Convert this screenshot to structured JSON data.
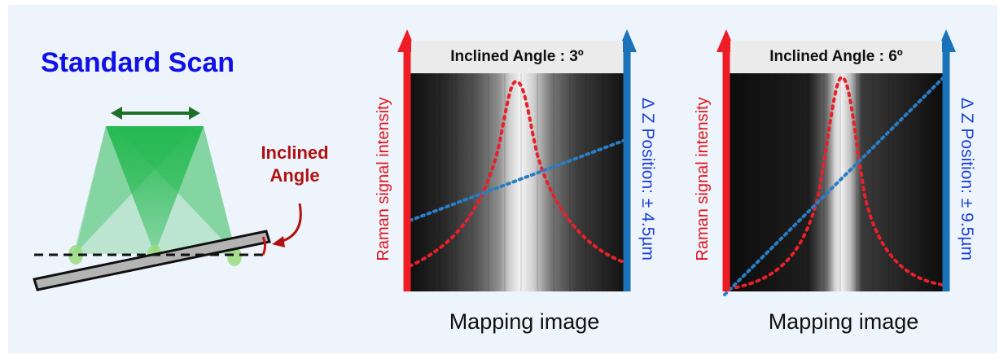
{
  "title": "Standard Scan",
  "inclined_label": "Inclined Angle",
  "colors": {
    "title": "#1010e8",
    "inclined_label": "#b01212",
    "raman_arrow": "#ee1c25",
    "z_arrow": "#1a73b8",
    "peak_curve": "#e8202a",
    "z_line": "#2a7dc4",
    "beam": "#22b84e",
    "panel_bg": "#eef4fb"
  },
  "panels": [
    {
      "title": "Inclined Angle : 3º",
      "left_axis_label": "Raman signal intensity",
      "right_axis_label": "Δ Z Position: ± 4.5µm",
      "caption": "Mapping image"
    },
    {
      "title": "Inclined Angle : 6º",
      "left_axis_label": "Raman signal intensity",
      "right_axis_label": "Δ Z Position: ± 9.5µm",
      "caption": "Mapping image"
    }
  ],
  "icons": [
    "double-arrow-icon",
    "laser-beam-icon",
    "tilted-sample-icon",
    "up-arrow-icon"
  ]
}
